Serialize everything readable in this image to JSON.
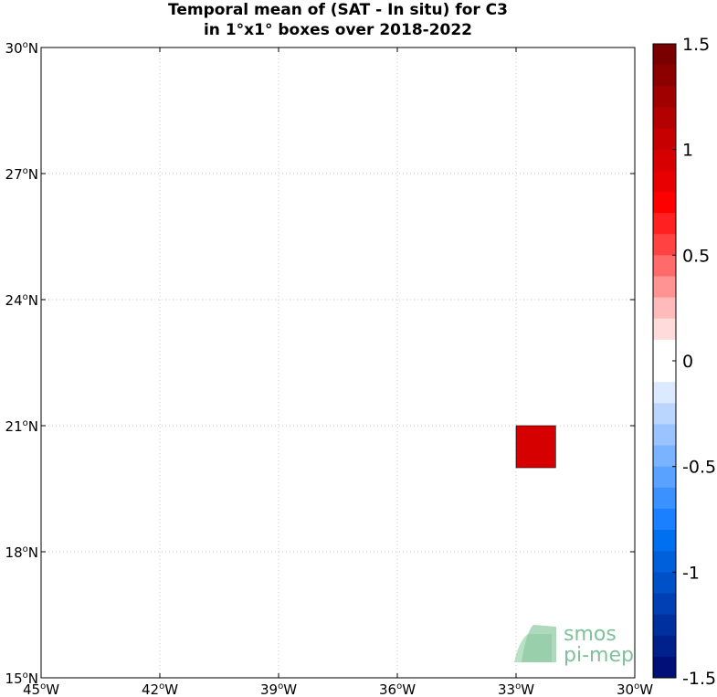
{
  "title_line1": "Temporal mean of (SAT - In situ) for C3",
  "title_line2": "in 1°x1° boxes over 2018-2022",
  "map": {
    "lon_range": [
      -45,
      -30
    ],
    "lat_range": [
      15,
      30
    ],
    "grid": true,
    "lon_ticks": [
      {
        "value": -45,
        "label": "45",
        "suffix": "W"
      },
      {
        "value": -42,
        "label": "42",
        "suffix": "W"
      },
      {
        "value": -39,
        "label": "39",
        "suffix": "W"
      },
      {
        "value": -36,
        "label": "36",
        "suffix": "W"
      },
      {
        "value": -33,
        "label": "33",
        "suffix": "W"
      },
      {
        "value": -30,
        "label": "30",
        "suffix": "W"
      }
    ],
    "lat_ticks": [
      {
        "value": 15,
        "label": "15",
        "suffix": "N"
      },
      {
        "value": 18,
        "label": "18",
        "suffix": "N"
      },
      {
        "value": 21,
        "label": "21",
        "suffix": "N"
      },
      {
        "value": 24,
        "label": "24",
        "suffix": "N"
      },
      {
        "value": 27,
        "label": "27",
        "suffix": "N"
      },
      {
        "value": 30,
        "label": "30",
        "suffix": "N"
      }
    ],
    "cells": [
      {
        "lon_min": -33,
        "lon_max": -32,
        "lat_min": 20,
        "lat_max": 21,
        "value": 1.05,
        "color": "#d60000"
      }
    ]
  },
  "colorbar": {
    "range": [
      -1.5,
      1.5
    ],
    "ticks": [
      {
        "value": 1.5,
        "label": "1.5"
      },
      {
        "value": 1,
        "label": "1"
      },
      {
        "value": 0.5,
        "label": "0.5"
      },
      {
        "value": 0,
        "label": "0"
      },
      {
        "value": -0.5,
        "label": "-0.5"
      },
      {
        "value": -1,
        "label": "-1"
      },
      {
        "value": -1.5,
        "label": "-1.5"
      }
    ],
    "colors_top_to_bottom": [
      "#7a0000",
      "#8c0000",
      "#a00000",
      "#b30000",
      "#c60000",
      "#d60000",
      "#e80000",
      "#ff0000",
      "#ff2121",
      "#ff4242",
      "#ff6a6a",
      "#ff9292",
      "#ffbaba",
      "#ffdcdc",
      "#ffffff",
      "#ffffff",
      "#dceaff",
      "#bad6ff",
      "#9ac4ff",
      "#7ab3ff",
      "#5aa2ff",
      "#3a91ff",
      "#1a80ff",
      "#0070f0",
      "#0060dc",
      "#0050c8",
      "#0040b4",
      "#0030a0",
      "#00208c",
      "#001078"
    ]
  },
  "logo": {
    "line1": "smos",
    "line2": "pi-mep",
    "text_color": "#80c09a",
    "icon_color": "#8cc9a0"
  }
}
